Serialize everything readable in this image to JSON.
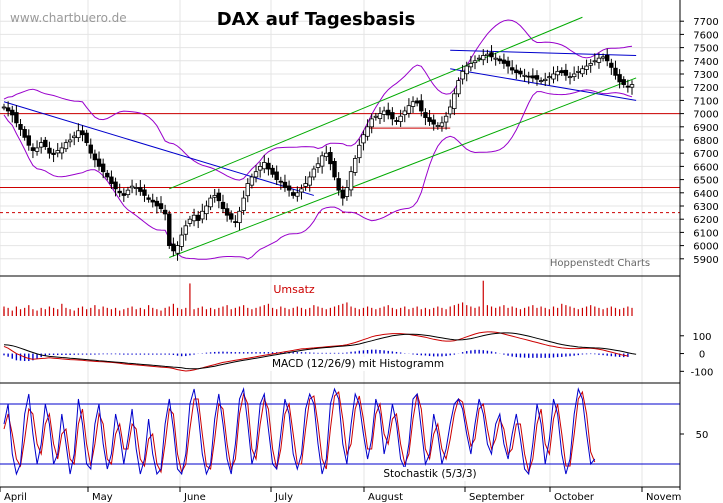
{
  "watermark": "www.chartbuero.de",
  "chart_data": {
    "type": "line",
    "title": "DAX auf Tagesbasis",
    "source": "Hoppenstedt Charts",
    "months": [
      "April",
      "May",
      "June",
      "July",
      "August",
      "September",
      "October",
      "Novem"
    ],
    "grid": true,
    "price": {
      "ylim": [
        5800,
        7800
      ],
      "yticks": [
        5900,
        6000,
        6100,
        6200,
        6300,
        6400,
        6500,
        6600,
        6700,
        6800,
        6900,
        7000,
        7100,
        7200,
        7300,
        7400,
        7500,
        7600,
        7700
      ],
      "close": [
        7050,
        7020,
        6990,
        6930,
        6880,
        6820,
        6760,
        6720,
        6740,
        6780,
        6750,
        6700,
        6690,
        6720,
        6740,
        6780,
        6800,
        6830,
        6870,
        6840,
        6780,
        6700,
        6650,
        6600,
        6560,
        6520,
        6470,
        6430,
        6400,
        6380,
        6420,
        6450,
        6440,
        6410,
        6380,
        6350,
        6330,
        6300,
        6280,
        6240,
        6000,
        5960,
        6000,
        6080,
        6150,
        6200,
        6230,
        6190,
        6260,
        6300,
        6360,
        6380,
        6340,
        6280,
        6230,
        6200,
        6180,
        6260,
        6360,
        6470,
        6520,
        6560,
        6600,
        6630,
        6580,
        6540,
        6500,
        6480,
        6440,
        6420,
        6380,
        6400,
        6430,
        6470,
        6520,
        6580,
        6620,
        6680,
        6700,
        6620,
        6520,
        6420,
        6360,
        6440,
        6560,
        6660,
        6760,
        6840,
        6900,
        6960,
        6980,
        7000,
        7020,
        6990,
        6960,
        6940,
        6980,
        7020,
        7060,
        7090,
        7080,
        7020,
        6970,
        6940,
        6920,
        6910,
        6930,
        6980,
        7050,
        7150,
        7250,
        7320,
        7360,
        7380,
        7400,
        7420,
        7440,
        7450,
        7430,
        7420,
        7400,
        7380,
        7360,
        7330,
        7310,
        7300,
        7290,
        7280,
        7270,
        7260,
        7250,
        7260,
        7280,
        7300,
        7320,
        7310,
        7290,
        7280,
        7300,
        7320,
        7340,
        7360,
        7380,
        7400,
        7420,
        7430,
        7400,
        7350,
        7290,
        7240,
        7220,
        7200,
        7220
      ],
      "lines": [
        {
          "name": "resistance-1",
          "color": "#0000cc",
          "from": [
            0,
            7090
          ],
          "to": [
            75,
            6380
          ]
        },
        {
          "name": "resistance-2",
          "color": "#0000cc",
          "from": [
            108,
            7480
          ],
          "to": [
            153,
            7440
          ]
        },
        {
          "name": "support-top",
          "color": "#0000cc",
          "from": [
            108,
            7340
          ],
          "to": [
            153,
            7100
          ]
        },
        {
          "name": "channel-lower",
          "color": "#00aa00",
          "from": [
            40,
            5910
          ],
          "to": [
            153,
            7270
          ]
        },
        {
          "name": "channel-upper",
          "color": "#00aa00",
          "from": [
            40,
            6430
          ],
          "to": [
            140,
            7730
          ]
        }
      ],
      "hlines": [
        {
          "value": 7000,
          "color": "#cc0000",
          "style": "solid"
        },
        {
          "value": 6440,
          "color": "#cc0000",
          "style": "solid"
        },
        {
          "value": 6250,
          "color": "#cc0000",
          "style": "dashed"
        },
        {
          "value": 6890,
          "color": "#cc0000",
          "style": "solid",
          "from": 88,
          "to": 108
        }
      ]
    },
    "volume": {
      "label": "Umsatz",
      "values": [
        5,
        6,
        4,
        7,
        5,
        6,
        8,
        5,
        4,
        6,
        5,
        7,
        6,
        5,
        9,
        6,
        5,
        4,
        6,
        7,
        5,
        6,
        8,
        5,
        7,
        6,
        5,
        6,
        4,
        5,
        6,
        7,
        5,
        6,
        5,
        8,
        6,
        5,
        4,
        6,
        7,
        9,
        6,
        5,
        6,
        24,
        5,
        6,
        7,
        5,
        6,
        5,
        6,
        7,
        8,
        5,
        6,
        7,
        8,
        6,
        5,
        6,
        7,
        8,
        9,
        6,
        5,
        7,
        6,
        5,
        6,
        7,
        6,
        5,
        6,
        8,
        7,
        6,
        5,
        6,
        7,
        8,
        9,
        10,
        7,
        6,
        5,
        6,
        7,
        6,
        5,
        6,
        7,
        8,
        6,
        5,
        6,
        7,
        5,
        6,
        7,
        5,
        6,
        5,
        6,
        7,
        6,
        5,
        7,
        8,
        9,
        10,
        8,
        7,
        6,
        7,
        26,
        8,
        7,
        6,
        7,
        8,
        6,
        7,
        6,
        5,
        6,
        7,
        8,
        6,
        7,
        6,
        5,
        7,
        6,
        9,
        8,
        7,
        6,
        5,
        6,
        7,
        8,
        7,
        6,
        5,
        6,
        7,
        6,
        5,
        6,
        7,
        6,
        7
      ]
    },
    "macd": {
      "label": "MACD (12/26/9) mit Histogramm",
      "ylim": [
        -160,
        200
      ],
      "yticks": [
        -100,
        0,
        100
      ],
      "macd": [
        40,
        30,
        15,
        0,
        -10,
        -20,
        -28,
        -32,
        -30,
        -28,
        -26,
        -24,
        -26,
        -28,
        -30,
        -32,
        -34,
        -35,
        -36,
        -38,
        -40,
        -42,
        -44,
        -45,
        -46,
        -48,
        -50,
        -52,
        -55,
        -58,
        -60,
        -62,
        -64,
        -66,
        -68,
        -70,
        -72,
        -74,
        -76,
        -78,
        -80,
        -84,
        -90,
        -95,
        -98,
        -96,
        -92,
        -86,
        -80,
        -74,
        -68,
        -62,
        -56,
        -50,
        -46,
        -42,
        -38,
        -34,
        -30,
        -26,
        -22,
        -18,
        -14,
        -10,
        -6,
        -2,
        2,
        6,
        10,
        14,
        18,
        22,
        26,
        28,
        30,
        32,
        34,
        36,
        38,
        40,
        42,
        44,
        46,
        50,
        56,
        62,
        70,
        78,
        86,
        94,
        100,
        104,
        108,
        110,
        112,
        112,
        112,
        110,
        108,
        104,
        100,
        96,
        92,
        86,
        80,
        76,
        72,
        70,
        70,
        72,
        78,
        86,
        94,
        102,
        110,
        116,
        120,
        122,
        122,
        120,
        116,
        110,
        104,
        98,
        92,
        86,
        80,
        74,
        68,
        62,
        56,
        50,
        44,
        40,
        36,
        32,
        30,
        28,
        28,
        28,
        30,
        30,
        30,
        28,
        24,
        20,
        14,
        8,
        2,
        -4,
        -10,
        -14
      ],
      "signal": [
        50,
        48,
        44,
        38,
        30,
        22,
        14,
        6,
        -2,
        -8,
        -12,
        -16,
        -18,
        -20,
        -22,
        -24,
        -26,
        -28,
        -30,
        -32,
        -34,
        -36,
        -38,
        -40,
        -42,
        -44,
        -46,
        -48,
        -50,
        -52,
        -54,
        -56,
        -58,
        -60,
        -62,
        -64,
        -66,
        -68,
        -70,
        -72,
        -74,
        -76,
        -78,
        -80,
        -84,
        -86,
        -86,
        -85,
        -82,
        -79,
        -75,
        -71,
        -66,
        -61,
        -56,
        -51,
        -46,
        -42,
        -38,
        -34,
        -30,
        -26,
        -22,
        -18,
        -14,
        -10,
        -6,
        -2,
        2,
        6,
        10,
        14,
        18,
        21,
        24,
        27,
        30,
        32,
        34,
        36,
        38,
        40,
        42,
        44,
        46,
        50,
        54,
        60,
        66,
        72,
        78,
        84,
        90,
        95,
        100,
        103,
        106,
        108,
        109,
        109,
        108,
        106,
        103,
        100,
        96,
        92,
        88,
        84,
        80,
        78,
        77,
        78,
        80,
        84,
        89,
        95,
        101,
        106,
        110,
        113,
        115,
        116,
        116,
        115,
        112,
        108,
        103,
        98,
        92,
        86,
        80,
        74,
        68,
        62,
        56,
        51,
        47,
        43,
        40,
        37,
        35,
        34,
        33,
        32,
        31,
        29,
        26,
        23,
        19,
        15,
        10,
        5,
        0,
        -4
      ],
      "hist_color": "#0000cc",
      "macd_color": "#cc0000",
      "signal_color": "#000000"
    },
    "stochastic": {
      "label": "Stochastik (5/3/3)",
      "ylim": [
        0,
        100
      ],
      "yticks": [
        50
      ],
      "levels": [
        80,
        20
      ],
      "k": [
        60,
        80,
        30,
        10,
        20,
        70,
        90,
        50,
        20,
        40,
        80,
        60,
        20,
        30,
        70,
        40,
        10,
        30,
        85,
        60,
        20,
        15,
        60,
        80,
        40,
        15,
        30,
        70,
        50,
        20,
        45,
        75,
        35,
        10,
        25,
        65,
        30,
        10,
        15,
        60,
        85,
        55,
        15,
        10,
        30,
        80,
        95,
        70,
        30,
        10,
        20,
        65,
        90,
        60,
        25,
        10,
        40,
        85,
        95,
        60,
        20,
        35,
        80,
        90,
        55,
        20,
        15,
        50,
        85,
        70,
        30,
        15,
        30,
        75,
        90,
        80,
        40,
        10,
        25,
        80,
        95,
        85,
        40,
        20,
        60,
        90,
        80,
        50,
        25,
        45,
        85,
        70,
        30,
        50,
        80,
        60,
        25,
        15,
        40,
        85,
        90,
        55,
        20,
        30,
        70,
        50,
        20,
        35,
        60,
        80,
        85,
        75,
        50,
        30,
        60,
        85,
        70,
        40,
        30,
        60,
        70,
        40,
        25,
        50,
        70,
        45,
        15,
        10,
        40,
        80,
        60,
        20,
        45,
        85,
        70,
        30,
        10,
        25,
        70,
        95,
        85,
        50,
        20,
        25
      ],
      "d": [
        55,
        70,
        50,
        25,
        18,
        45,
        75,
        70,
        40,
        30,
        60,
        70,
        40,
        25,
        50,
        55,
        25,
        20,
        60,
        75,
        40,
        18,
        40,
        70,
        60,
        25,
        20,
        50,
        60,
        35,
        35,
        60,
        55,
        25,
        18,
        45,
        50,
        20,
        12,
        40,
        75,
        70,
        30,
        12,
        20,
        55,
        85,
        85,
        50,
        18,
        15,
        45,
        80,
        75,
        40,
        15,
        25,
        70,
        90,
        80,
        35,
        25,
        60,
        85,
        75,
        35,
        15,
        35,
        70,
        80,
        50,
        20,
        20,
        55,
        85,
        88,
        60,
        25,
        15,
        55,
        88,
        92,
        65,
        30,
        40,
        75,
        88,
        65,
        35,
        35,
        70,
        80,
        50,
        40,
        65,
        70,
        40,
        20,
        30,
        65,
        90,
        75,
        35,
        25,
        50,
        60,
        35,
        25,
        45,
        70,
        85,
        82,
        60,
        38,
        45,
        75,
        80,
        55,
        35,
        45,
        65,
        55,
        30,
        35,
        60,
        60,
        30,
        12,
        25,
        60,
        75,
        40,
        30,
        65,
        80,
        50,
        18,
        18,
        50,
        85,
        92,
        70,
        32,
        22
      ],
      "k_color": "#0000cc",
      "d_color": "#cc0000"
    }
  }
}
